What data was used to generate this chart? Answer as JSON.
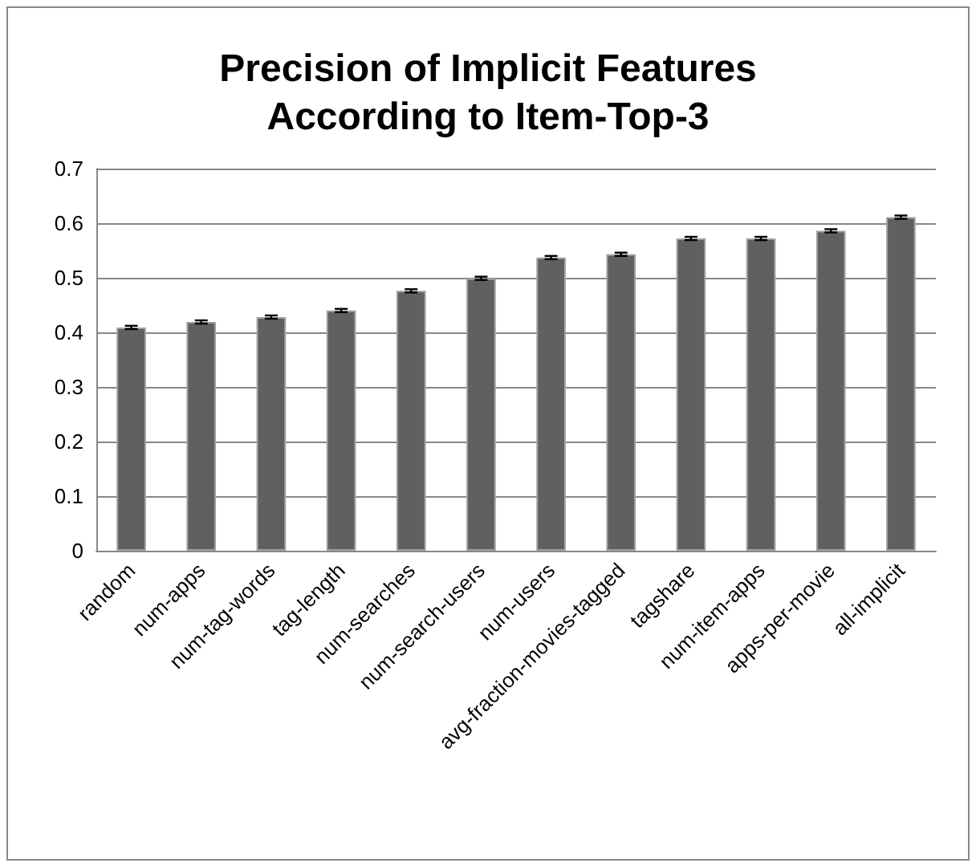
{
  "chart_data": {
    "type": "bar",
    "title": "Precision of Implicit Features\nAccording to Item-Top-3",
    "categories": [
      "random",
      "num-apps",
      "num-tag-words",
      "tag-length",
      "num-searches",
      "num-search-users",
      "num-users",
      "avg-fraction-movies-tagged",
      "tagshare",
      "num-item-apps",
      "apps-per-movie",
      "all-implicit"
    ],
    "values": [
      0.409,
      0.419,
      0.428,
      0.44,
      0.476,
      0.499,
      0.537,
      0.543,
      0.572,
      0.572,
      0.586,
      0.611
    ],
    "errors": [
      0.003,
      0.003,
      0.003,
      0.003,
      0.003,
      0.003,
      0.003,
      0.003,
      0.003,
      0.003,
      0.003,
      0.003
    ],
    "color": "#606060",
    "ylim": [
      0,
      0.7
    ],
    "yticks": [
      0,
      0.1,
      0.2,
      0.3,
      0.4,
      0.5,
      0.6,
      0.7
    ],
    "grid": "y"
  }
}
